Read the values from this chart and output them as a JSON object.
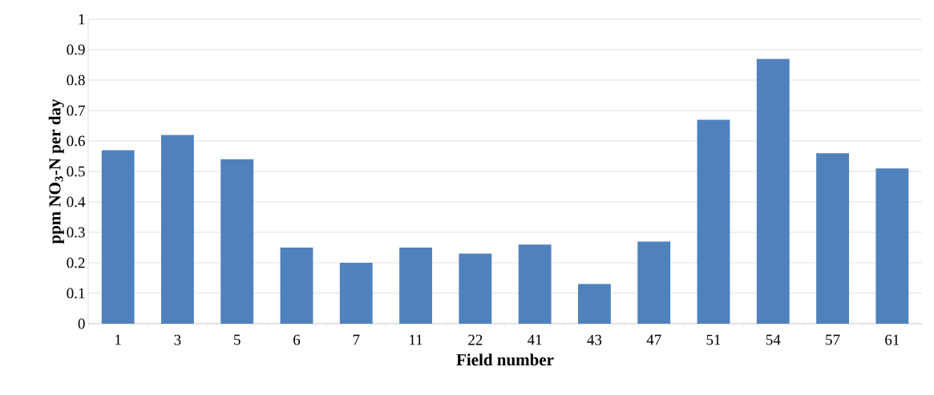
{
  "chart_data": {
    "type": "bar",
    "xlabel": "Field number",
    "ylabel": "ppm NO$_{3}$-N per day",
    "categories": [
      "1",
      "3",
      "5",
      "6",
      "7",
      "11",
      "22",
      "41",
      "43",
      "47",
      "51",
      "54",
      "57",
      "61"
    ],
    "values": [
      0.57,
      0.62,
      0.54,
      0.25,
      0.2,
      0.25,
      0.23,
      0.26,
      0.13,
      0.27,
      0.67,
      0.87,
      0.56,
      0.51
    ],
    "color": "#4f81bd",
    "ylim": [
      0,
      1
    ],
    "yticks": [
      0,
      0.1,
      0.2,
      0.3,
      0.4,
      0.5,
      0.6,
      0.7,
      0.8,
      0.9,
      1
    ],
    "grid": "y"
  }
}
